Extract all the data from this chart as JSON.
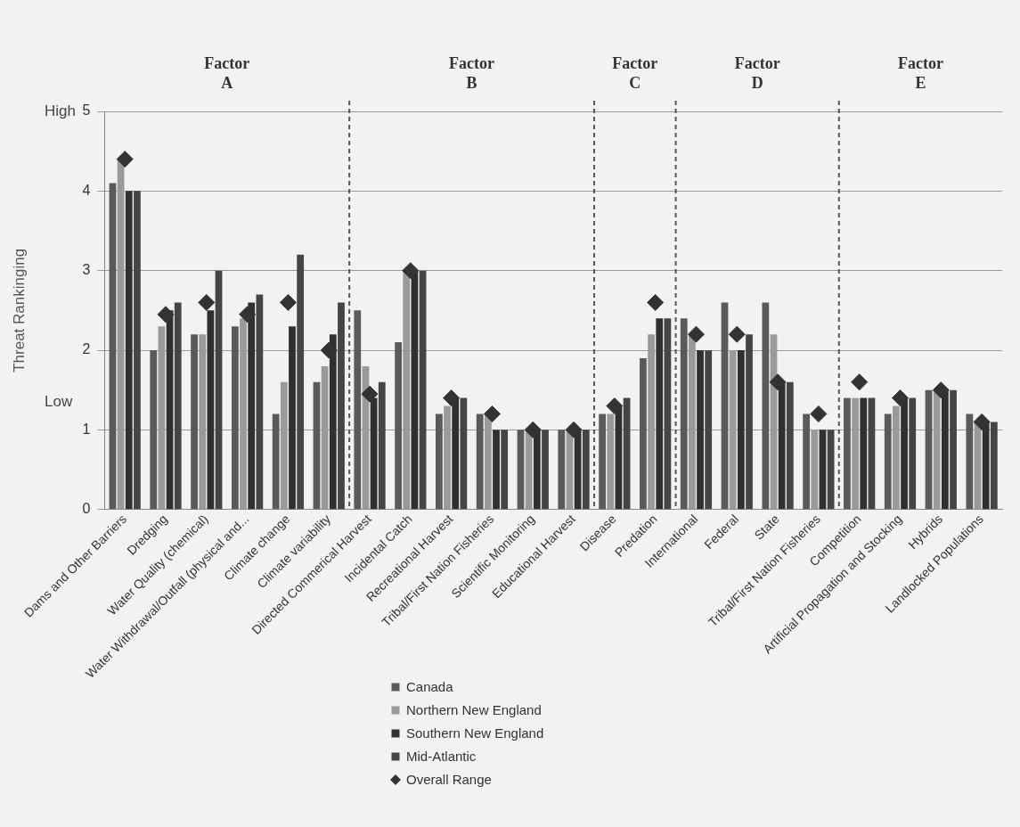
{
  "chart_data": {
    "type": "bar",
    "ylabel": "Threat Rankinging",
    "categories": [
      "Dams and Other Barriers",
      "Dredging",
      "Water Quality (chemical)",
      "Water Withdrawal/Outfall (physical and...",
      "Climate change",
      "Climate variability",
      "Directed Commerical Harvest",
      "Incidental Catch",
      "Recreational Harvest",
      "Tribal/First Nation Fisheries",
      "Scientific Monitoring",
      "Educational Harvest",
      "Disease",
      "Predation",
      "International",
      "Federal",
      "State",
      "Tribal/First Nation Fisheries",
      "Competition",
      "Artificial Propagation and Stocking",
      "Hybrids",
      "Landlocked Populations"
    ],
    "series": [
      {
        "name": "Canada",
        "color": "#5a5a5a",
        "values": [
          4.1,
          2.0,
          2.2,
          2.3,
          1.2,
          1.6,
          2.5,
          2.1,
          1.2,
          1.2,
          1.0,
          1.0,
          1.2,
          1.9,
          2.4,
          2.6,
          2.6,
          1.2,
          1.4,
          1.2,
          1.5,
          1.2
        ]
      },
      {
        "name": "Northern New England",
        "color": "#9a9a9a",
        "values": [
          4.4,
          2.3,
          2.2,
          2.4,
          1.6,
          1.8,
          1.8,
          3.0,
          1.3,
          1.2,
          1.0,
          1.0,
          1.2,
          2.2,
          2.2,
          2.0,
          2.2,
          1.0,
          1.4,
          1.3,
          1.5,
          1.1
        ]
      },
      {
        "name": "Southern New England",
        "color": "#303030",
        "values": [
          4.0,
          2.5,
          2.5,
          2.6,
          2.3,
          2.2,
          1.4,
          3.0,
          1.4,
          1.0,
          1.0,
          1.0,
          1.3,
          2.4,
          2.0,
          2.0,
          1.6,
          1.0,
          1.4,
          1.4,
          1.5,
          1.1
        ]
      },
      {
        "name": "Mid-Atlantic",
        "color": "#454545",
        "values": [
          4.0,
          2.6,
          3.0,
          2.7,
          3.2,
          2.6,
          1.6,
          3.0,
          1.4,
          1.0,
          1.0,
          1.0,
          1.4,
          2.4,
          2.0,
          2.2,
          1.6,
          1.0,
          1.4,
          1.4,
          1.5,
          1.1
        ]
      },
      {
        "name": "Overall Range",
        "type": "scatter",
        "marker": "diamond",
        "color": "#333333",
        "values": [
          4.4,
          2.45,
          2.6,
          2.45,
          2.6,
          2.0,
          1.45,
          3.0,
          1.4,
          1.2,
          1.0,
          1.0,
          1.3,
          2.6,
          2.2,
          2.2,
          1.6,
          1.2,
          1.6,
          1.4,
          1.5,
          1.1
        ]
      }
    ],
    "ylim": [
      0,
      5
    ],
    "yticks": [
      0,
      1,
      2,
      3,
      4,
      5
    ],
    "grid": "y",
    "legend": "bottom",
    "annotations": [
      "Factor A",
      "Factor B",
      "Factor C",
      "Factor D",
      "Factor E",
      "High",
      "Low"
    ]
  }
}
